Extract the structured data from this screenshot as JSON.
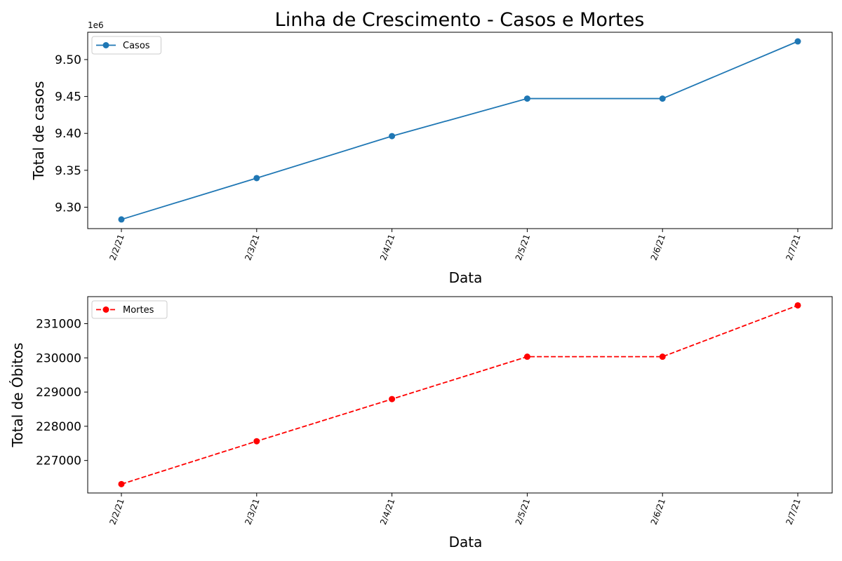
{
  "chart_data": [
    {
      "type": "line",
      "title": "Linha de Crescimento - Casos e Mortes",
      "xlabel": "Data",
      "ylabel": "Total de casos",
      "categories": [
        "2/2/21",
        "2/3/21",
        "2/4/21",
        "2/5/21",
        "2/6/21",
        "2/7/21"
      ],
      "series": [
        {
          "name": "Casos",
          "values": [
            9283418,
            9339420,
            9396293,
            9447165,
            9447165,
            9524640
          ],
          "color": "#1f77b4",
          "line_style": "solid",
          "marker": "circle"
        }
      ],
      "yticks": [
        "9.30",
        "9.35",
        "9.40",
        "9.45",
        "9.50"
      ],
      "ytick_values": [
        9300000,
        9350000,
        9400000,
        9450000,
        9500000
      ],
      "y_offset_label": "1e6",
      "ylim": [
        9271000,
        9537000
      ],
      "legend_position": "upper-left",
      "grid": false
    },
    {
      "type": "line",
      "title": "",
      "xlabel": "Data",
      "ylabel": "Total de Óbitos",
      "categories": [
        "2/2/21",
        "2/3/21",
        "2/4/21",
        "2/5/21",
        "2/6/21",
        "2/7/21"
      ],
      "series": [
        {
          "name": "Mortes",
          "values": [
            226309,
            227563,
            228795,
            230034,
            230034,
            231534
          ],
          "color": "#ff0000",
          "line_style": "dashed",
          "marker": "circle"
        }
      ],
      "yticks": [
        "227000",
        "228000",
        "229000",
        "230000",
        "231000"
      ],
      "ytick_values": [
        227000,
        228000,
        229000,
        230000,
        231000
      ],
      "ylim": [
        226050,
        231790
      ],
      "legend_position": "upper-left",
      "grid": false
    }
  ]
}
